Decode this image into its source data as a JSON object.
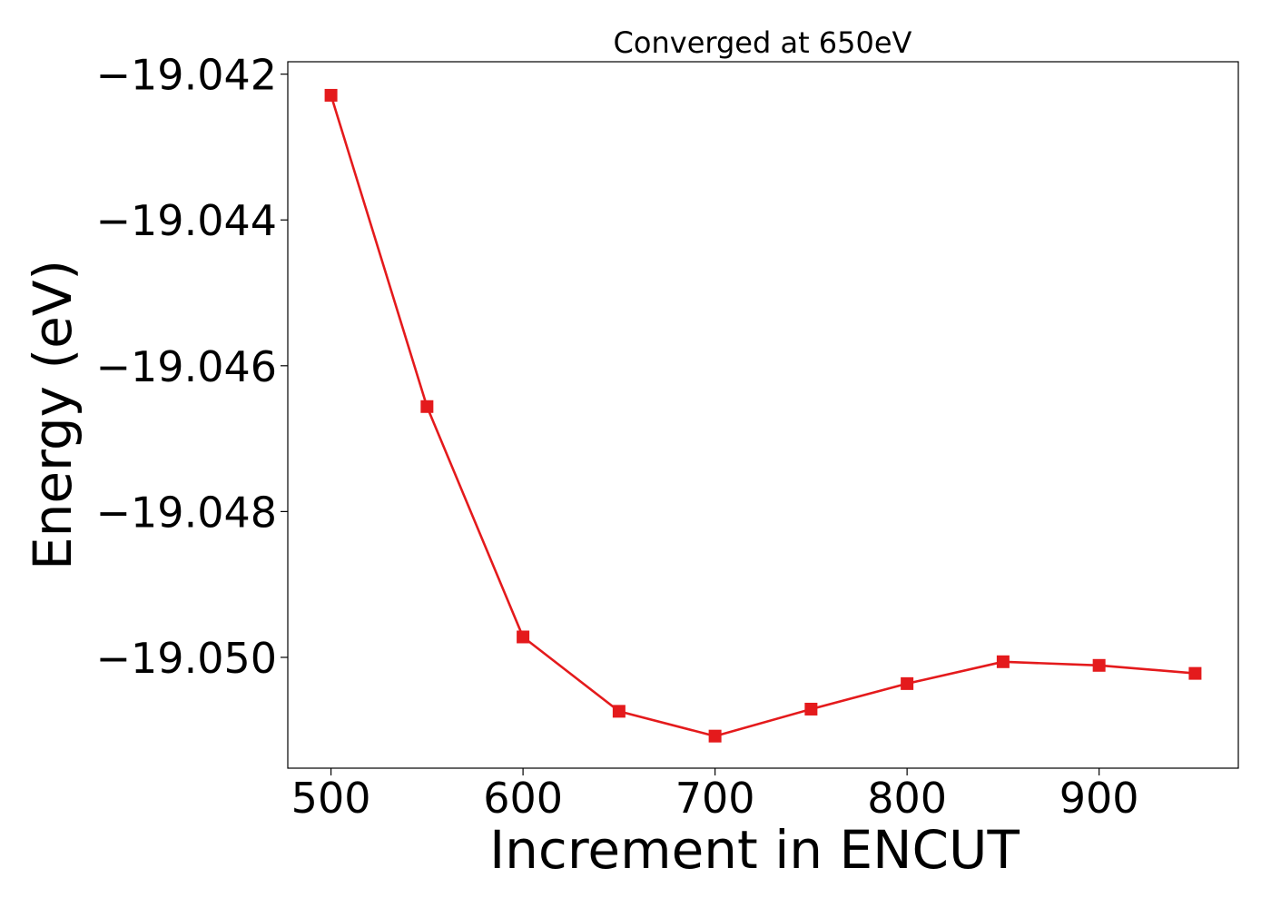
{
  "chart_data": {
    "type": "line",
    "title": "Converged at 650eV",
    "xlabel": "Increment in ENCUT",
    "ylabel": "Energy (eV)",
    "xlim": [
      477.5,
      972.5
    ],
    "ylim": [
      -19.05152,
      -19.04183
    ],
    "x_ticks": [
      500,
      600,
      700,
      800,
      900
    ],
    "x_tick_labels": [
      "500",
      "600",
      "700",
      "800",
      "900"
    ],
    "y_ticks": [
      -19.042,
      -19.044,
      -19.046,
      -19.048,
      -19.05
    ],
    "y_tick_labels": [
      "−19.042",
      "−19.044",
      "−19.046",
      "−19.048",
      "−19.050"
    ],
    "grid": false,
    "series": [
      {
        "color": "#e41a1c",
        "marker": "square",
        "x": [
          500,
          550,
          600,
          650,
          700,
          750,
          800,
          850,
          900,
          950
        ],
        "y": [
          -19.04229,
          -19.04656,
          -19.04972,
          -19.05074,
          -19.05108,
          -19.05071,
          -19.05036,
          -19.05006,
          -19.05011,
          -19.05022
        ]
      }
    ]
  }
}
